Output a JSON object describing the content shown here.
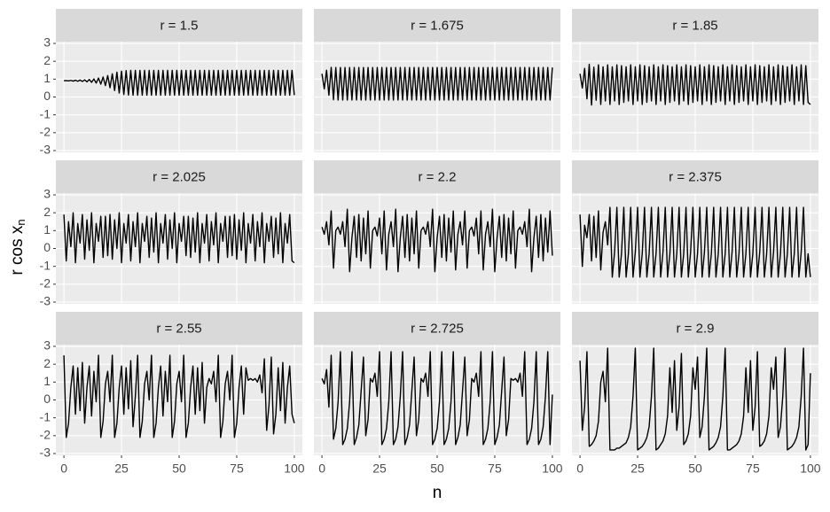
{
  "chart_data": {
    "type": "line",
    "x": [
      0,
      1,
      2,
      3,
      4,
      5,
      6,
      7,
      8,
      9,
      10,
      11,
      12,
      13,
      14,
      15,
      16,
      17,
      18,
      19,
      20,
      21,
      22,
      23,
      24,
      25,
      26,
      27,
      28,
      29,
      30,
      31,
      32,
      33,
      34,
      35,
      36,
      37,
      38,
      39,
      40,
      41,
      42,
      43,
      44,
      45,
      46,
      47,
      48,
      49,
      50,
      51,
      52,
      53,
      54,
      55,
      56,
      57,
      58,
      59,
      60,
      61,
      62,
      63,
      64,
      65,
      66,
      67,
      68,
      69,
      70,
      71,
      72,
      73,
      74,
      75,
      76,
      77,
      78,
      79,
      80,
      81,
      82,
      83,
      84,
      85,
      86,
      87,
      88,
      89,
      90,
      91,
      92,
      93,
      94,
      95,
      96,
      97,
      98,
      99,
      100
    ],
    "x_label": "n",
    "y_label": "r cos x",
    "y_label_subscript": "n",
    "xlim": [
      -3.5,
      103.5
    ],
    "xticks": [
      0,
      25,
      50,
      75,
      100
    ],
    "ylim": [
      -3.1,
      3.1
    ],
    "yticks": [
      -3,
      -2,
      -1,
      0,
      1,
      2,
      3
    ],
    "grid": true,
    "series": [
      {
        "name": "r = 1.5",
        "color": "#000000",
        "values": [
          0.91,
          0.92,
          0.9,
          0.93,
          0.89,
          0.94,
          0.88,
          0.95,
          0.87,
          0.96,
          0.85,
          0.98,
          0.82,
          1.01,
          0.78,
          1.06,
          0.72,
          1.12,
          0.64,
          1.2,
          0.52,
          1.3,
          0.36,
          1.39,
          0.22,
          1.45,
          0.14,
          1.48,
          0.11,
          1.49,
          0.1,
          1.49,
          0.1,
          1.49,
          0.1,
          1.49,
          0.1,
          1.49,
          0.1,
          1.49,
          0.1,
          1.49,
          0.1,
          1.49,
          0.1,
          1.49,
          0.1,
          1.49,
          0.1,
          1.49,
          0.1,
          1.49,
          0.1,
          1.49,
          0.1,
          1.49,
          0.1,
          1.49,
          0.1,
          1.49,
          0.1,
          1.49,
          0.1,
          1.49,
          0.1,
          1.49,
          0.1,
          1.49,
          0.1,
          1.49,
          0.1,
          1.49,
          0.1,
          1.49,
          0.1,
          1.49,
          0.1,
          1.49,
          0.1,
          1.49,
          0.1,
          1.49,
          0.1,
          1.49,
          0.1,
          1.49,
          0.1,
          1.49,
          0.1,
          1.49,
          0.1,
          1.49,
          0.1,
          1.49,
          0.1,
          1.49,
          0.1,
          1.49,
          0.1,
          1.49,
          0.1
        ]
      },
      {
        "name": "r = 1.675",
        "color": "#000000",
        "values": [
          1.3,
          0.45,
          1.5,
          0.1,
          1.66,
          -0.15,
          1.65,
          -0.17,
          1.65,
          -0.17,
          1.65,
          -0.17,
          1.65,
          -0.17,
          1.65,
          -0.17,
          1.65,
          -0.17,
          1.65,
          -0.17,
          1.65,
          -0.17,
          1.65,
          -0.17,
          1.65,
          -0.17,
          1.65,
          -0.17,
          1.65,
          -0.17,
          1.65,
          -0.17,
          1.65,
          -0.17,
          1.65,
          -0.17,
          1.65,
          -0.17,
          1.65,
          -0.17,
          1.65,
          -0.17,
          1.65,
          -0.17,
          1.65,
          -0.17,
          1.65,
          -0.17,
          1.65,
          -0.17,
          1.65,
          -0.17,
          1.65,
          -0.17,
          1.65,
          -0.17,
          1.65,
          -0.17,
          1.65,
          -0.17,
          1.65,
          -0.17,
          1.65,
          -0.17,
          1.65,
          -0.17,
          1.65,
          -0.17,
          1.65,
          -0.17,
          1.65,
          -0.17,
          1.65,
          -0.17,
          1.65,
          -0.17,
          1.65,
          -0.17,
          1.65,
          -0.17,
          1.65,
          -0.17,
          1.65,
          -0.17,
          1.65,
          -0.17,
          1.65,
          -0.17,
          1.65,
          -0.17,
          1.65,
          -0.17,
          1.65,
          -0.17,
          1.65,
          -0.17,
          1.65,
          -0.17,
          1.65,
          -0.17,
          1.65
        ]
      },
      {
        "name": "r = 1.85",
        "color": "#000000",
        "values": [
          1.3,
          0.5,
          1.6,
          -0.1,
          1.83,
          -0.45,
          1.67,
          -0.18,
          1.8,
          -0.42,
          1.69,
          -0.22,
          1.8,
          -0.42,
          1.69,
          -0.22,
          1.8,
          -0.42,
          1.75,
          -0.3,
          1.69,
          -0.22,
          1.8,
          -0.42,
          1.69,
          -0.22,
          1.8,
          -0.42,
          1.75,
          -0.3,
          1.69,
          -0.22,
          1.8,
          -0.42,
          1.69,
          -0.22,
          1.8,
          -0.42,
          1.75,
          -0.3,
          1.69,
          -0.22,
          1.8,
          -0.42,
          1.69,
          -0.22,
          1.8,
          -0.42,
          1.75,
          -0.3,
          1.69,
          -0.22,
          1.8,
          -0.42,
          1.69,
          -0.22,
          1.8,
          -0.42,
          1.75,
          -0.3,
          1.69,
          -0.22,
          1.8,
          -0.42,
          1.69,
          -0.22,
          1.8,
          -0.42,
          1.75,
          -0.3,
          1.69,
          -0.22,
          1.8,
          -0.42,
          1.69,
          -0.22,
          1.8,
          -0.42,
          1.75,
          -0.3,
          1.69,
          -0.22,
          1.8,
          -0.42,
          1.69,
          -0.22,
          1.8,
          -0.42,
          1.75,
          -0.3,
          1.69,
          -0.22,
          1.8,
          -0.42,
          1.69,
          -0.22,
          1.8,
          -0.42,
          1.75,
          -0.3,
          -0.42
        ]
      },
      {
        "name": "r = 2.025",
        "color": "#000000",
        "values": [
          1.9,
          -0.7,
          1.5,
          0.1,
          2.0,
          -0.8,
          1.4,
          0.3,
          1.9,
          -0.6,
          1.6,
          -0.1,
          2.0,
          -0.8,
          1.4,
          0.4,
          1.8,
          -0.5,
          1.8,
          -0.4,
          1.9,
          -0.6,
          1.6,
          0.0,
          2.0,
          -0.8,
          1.4,
          0.3,
          1.9,
          -0.7,
          1.5,
          0.1,
          2.0,
          -0.8,
          1.4,
          0.4,
          1.8,
          -0.5,
          1.7,
          -0.2,
          2.0,
          -0.8,
          1.4,
          0.3,
          1.9,
          -0.6,
          1.6,
          0.0,
          2.0,
          -0.8,
          1.4,
          0.4,
          1.8,
          -0.4,
          1.8,
          -0.5,
          1.7,
          -0.2,
          2.0,
          -0.8,
          1.4,
          0.3,
          1.9,
          -0.7,
          1.5,
          0.2,
          2.0,
          -0.8,
          1.4,
          0.4,
          1.8,
          -0.5,
          1.8,
          -0.4,
          1.9,
          -0.6,
          1.6,
          -0.1,
          2.0,
          -0.8,
          1.4,
          0.3,
          1.9,
          -0.7,
          1.5,
          0.1,
          2.0,
          -0.8,
          1.4,
          0.4,
          1.8,
          -0.5,
          1.7,
          -0.3,
          2.0,
          -0.8,
          1.4,
          0.3,
          1.9,
          -0.7,
          -0.8
        ]
      },
      {
        "name": "r = 2.2",
        "color": "#000000",
        "values": [
          1.2,
          0.8,
          1.5,
          0.2,
          2.1,
          -1.1,
          1.0,
          1.2,
          0.8,
          1.5,
          0.1,
          2.2,
          -1.3,
          0.6,
          1.8,
          -0.5,
          1.9,
          -0.7,
          1.7,
          -0.3,
          2.1,
          -1.1,
          1.0,
          1.2,
          0.7,
          1.7,
          -0.3,
          2.1,
          -1.2,
          0.8,
          1.5,
          0.1,
          2.2,
          -1.3,
          0.6,
          1.8,
          -0.5,
          1.9,
          -0.7,
          1.7,
          -0.3,
          2.1,
          -1.1,
          1.0,
          1.2,
          0.8,
          1.5,
          0.1,
          2.2,
          -1.3,
          0.6,
          1.8,
          -0.5,
          1.9,
          -0.7,
          1.7,
          -0.2,
          2.1,
          -1.2,
          0.8,
          1.5,
          0.2,
          2.1,
          -1.1,
          1.0,
          1.2,
          0.7,
          1.7,
          -0.3,
          2.1,
          -1.2,
          0.8,
          1.5,
          0.1,
          2.2,
          -1.3,
          0.6,
          1.8,
          -0.5,
          1.9,
          -0.7,
          1.7,
          -0.3,
          2.1,
          -1.1,
          1.0,
          1.2,
          0.8,
          1.5,
          0.1,
          2.2,
          -1.3,
          0.6,
          1.8,
          -0.5,
          1.9,
          -0.7,
          1.7,
          -0.2,
          2.1,
          -0.4
        ]
      },
      {
        "name": "r = 2.375",
        "color": "#000000",
        "values": [
          1.9,
          -1.0,
          1.3,
          0.6,
          1.9,
          -0.7,
          1.8,
          -0.5,
          2.1,
          -1.2,
          0.9,
          1.5,
          0.2,
          2.3,
          -1.6,
          -0.2,
          2.3,
          -1.6,
          -0.3,
          2.3,
          -1.6,
          -0.3,
          2.3,
          -1.6,
          -0.2,
          2.3,
          -1.6,
          -0.3,
          2.3,
          -1.6,
          -0.3,
          2.3,
          -1.6,
          -0.3,
          2.3,
          -1.6,
          -0.2,
          2.3,
          -1.6,
          -0.3,
          2.3,
          -1.6,
          -0.3,
          2.3,
          -1.6,
          -0.3,
          2.3,
          -1.6,
          -0.2,
          2.3,
          -1.6,
          -0.3,
          2.3,
          -1.6,
          -0.2,
          2.3,
          -1.6,
          -0.3,
          2.3,
          -1.6,
          -0.3,
          2.3,
          -1.6,
          -0.3,
          2.3,
          -1.6,
          -0.2,
          2.3,
          -1.6,
          -0.3,
          2.3,
          -1.6,
          -0.3,
          2.3,
          -1.6,
          -0.3,
          2.3,
          -1.6,
          -0.2,
          2.3,
          -1.6,
          -0.3,
          2.3,
          -1.6,
          -0.2,
          2.3,
          -1.6,
          -0.3,
          2.3,
          -1.6,
          -0.3,
          2.3,
          -1.6,
          -0.3,
          2.3,
          -1.6,
          -0.2,
          2.3,
          -1.6,
          -0.3,
          -1.6
        ]
      },
      {
        "name": "r = 2.55",
        "color": "#000000",
        "values": [
          2.5,
          -2.1,
          -1.3,
          0.7,
          1.9,
          -0.8,
          1.8,
          -0.6,
          2.1,
          -1.3,
          0.7,
          1.9,
          -0.9,
          1.6,
          -0.1,
          2.5,
          -2.1,
          -1.2,
          0.9,
          1.6,
          -0.1,
          2.5,
          -2.1,
          -1.3,
          0.7,
          1.9,
          -0.8,
          1.8,
          -0.5,
          2.2,
          -1.5,
          0.2,
          2.5,
          -2.1,
          -1.2,
          0.9,
          1.6,
          0.0,
          2.5,
          -2.1,
          -1.3,
          0.7,
          1.9,
          -0.9,
          1.6,
          -0.1,
          2.5,
          -2.1,
          -1.2,
          0.9,
          1.6,
          -0.1,
          2.5,
          -2.1,
          -1.3,
          0.7,
          1.9,
          -0.8,
          1.8,
          -0.6,
          2.1,
          -1.3,
          0.7,
          1.2,
          0.9,
          1.6,
          -0.1,
          2.5,
          -2.1,
          -1.2,
          0.9,
          1.6,
          0.0,
          2.5,
          -2.1,
          -1.3,
          0.7,
          1.9,
          -0.8,
          1.8,
          1.1,
          1.2,
          1.1,
          1.2,
          1.0,
          1.4,
          0.4,
          2.3,
          -1.7,
          -0.3,
          2.4,
          -1.9,
          -0.8,
          1.8,
          -0.6,
          2.1,
          -1.3,
          0.7,
          1.9,
          -0.8,
          -1.3
        ]
      },
      {
        "name": "r = 2.725",
        "color": "#000000",
        "values": [
          1.2,
          0.9,
          1.7,
          -0.4,
          2.5,
          -2.2,
          -1.6,
          -0.1,
          2.7,
          -2.5,
          -2.2,
          -1.6,
          -0.1,
          2.7,
          -2.5,
          -2.1,
          -1.4,
          0.5,
          2.4,
          -2.0,
          -1.1,
          1.2,
          1.0,
          1.5,
          0.2,
          2.7,
          -2.5,
          -2.2,
          -1.6,
          -0.1,
          2.7,
          -2.5,
          -2.2,
          -1.5,
          0.2,
          2.7,
          -2.5,
          -2.1,
          -1.4,
          0.5,
          2.4,
          -2.0,
          -1.1,
          1.2,
          1.0,
          1.5,
          0.2,
          2.7,
          -2.5,
          -2.2,
          -1.6,
          -0.1,
          2.7,
          -2.5,
          -2.2,
          -1.6,
          -0.1,
          2.7,
          -2.5,
          -2.1,
          -1.4,
          0.5,
          2.4,
          -2.0,
          -1.1,
          1.2,
          1.0,
          1.5,
          0.2,
          2.7,
          -2.5,
          -2.2,
          -1.6,
          -0.1,
          2.7,
          -2.5,
          -2.1,
          -1.4,
          0.5,
          2.4,
          -2.0,
          -1.1,
          1.2,
          1.1,
          1.2,
          1.0,
          1.5,
          0.2,
          2.7,
          -2.5,
          -2.2,
          -1.6,
          -0.1,
          2.7,
          -2.5,
          -2.2,
          -1.5,
          0.2,
          2.7,
          -2.5,
          0.3
        ]
      },
      {
        "name": "r = 2.9",
        "color": "#000000",
        "values": [
          2.2,
          -1.7,
          -0.4,
          2.7,
          -2.6,
          -2.5,
          -2.3,
          -2.0,
          -1.2,
          1.0,
          1.6,
          -0.1,
          2.9,
          -2.8,
          -2.8,
          -2.8,
          -2.7,
          -2.7,
          -2.6,
          -2.5,
          -2.4,
          -2.1,
          -1.5,
          0.2,
          2.9,
          -2.8,
          -2.7,
          -2.6,
          -2.4,
          -2.1,
          -1.5,
          0.2,
          2.9,
          -2.8,
          -2.7,
          -2.5,
          -2.3,
          -1.9,
          -0.9,
          1.8,
          -0.7,
          2.2,
          -1.7,
          -0.4,
          2.6,
          -2.5,
          -2.3,
          -1.9,
          -0.9,
          1.8,
          0.6,
          2.4,
          -2.1,
          -1.5,
          0.2,
          2.9,
          -2.8,
          -2.7,
          -2.6,
          -2.4,
          -2.1,
          -1.5,
          0.2,
          2.9,
          -2.8,
          -2.8,
          -2.7,
          -2.6,
          -2.5,
          -2.3,
          -1.9,
          -0.9,
          1.8,
          -0.7,
          2.2,
          -1.7,
          -0.4,
          2.7,
          -2.6,
          -2.5,
          -2.3,
          -1.9,
          -0.9,
          1.8,
          0.6,
          2.4,
          -2.1,
          -1.5,
          0.2,
          2.9,
          -2.8,
          -2.7,
          -2.6,
          -2.4,
          -2.1,
          -1.5,
          0.2,
          2.9,
          -2.8,
          -2.5,
          1.5
        ]
      }
    ]
  }
}
